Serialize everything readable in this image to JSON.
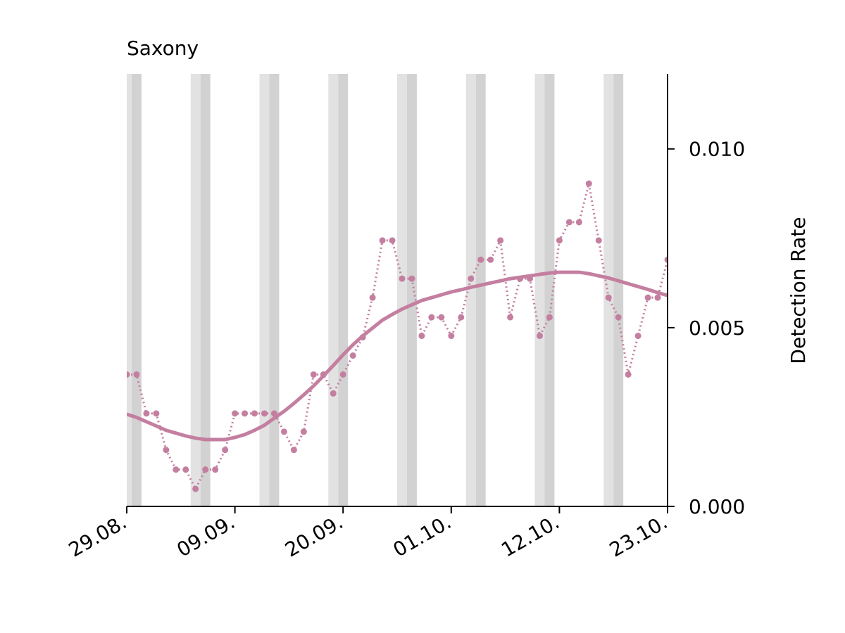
{
  "chart_data": {
    "type": "line",
    "title": "Saxony",
    "y_label": "Detection Rate",
    "categories": [
      "29.08.",
      null,
      null,
      null,
      null,
      null,
      null,
      null,
      null,
      null,
      null,
      "09.09.",
      null,
      null,
      null,
      null,
      null,
      null,
      null,
      null,
      null,
      null,
      "20.09.",
      null,
      null,
      null,
      null,
      null,
      null,
      null,
      null,
      null,
      null,
      "01.10.",
      null,
      null,
      null,
      null,
      null,
      null,
      null,
      null,
      null,
      null,
      "12.10.",
      null,
      null,
      null,
      null,
      null,
      null,
      null,
      null,
      null,
      null,
      "23.10."
    ],
    "series": [
      {
        "color": "#c47fa0",
        "style": "dotted-markers",
        "values": [
          0.00369,
          0.00369,
          0.0026,
          0.0026,
          0.00158,
          0.00103,
          0.00103,
          0.00049,
          0.00103,
          0.00103,
          0.00158,
          0.0026,
          0.0026,
          0.0026,
          0.0026,
          0.0026,
          0.00209,
          0.00158,
          0.00209,
          0.00369,
          0.00369,
          0.00316,
          0.00369,
          0.00422,
          0.00473,
          0.00584,
          0.00744,
          0.00744,
          0.00637,
          0.00637,
          0.00477,
          0.00529,
          0.00529,
          0.00477,
          0.00529,
          0.00637,
          0.0069,
          0.0069,
          0.00744,
          0.00529,
          0.00637,
          0.00637,
          0.00477,
          0.00529,
          0.00744,
          0.00795,
          0.00795,
          0.00903,
          0.00744,
          0.00584,
          0.00529,
          0.00369,
          0.00477,
          0.00584,
          0.00584,
          0.0069
        ]
      },
      {
        "color": "#c47fa0",
        "style": "solid",
        "values": [
          0.00258,
          0.00249,
          0.00237,
          0.00225,
          0.00213,
          0.00205,
          0.00197,
          0.00191,
          0.00187,
          0.00187,
          0.00187,
          0.00193,
          0.00201,
          0.00213,
          0.00227,
          0.00247,
          0.00266,
          0.00288,
          0.00312,
          0.00337,
          0.00365,
          0.00394,
          0.00424,
          0.00452,
          0.00477,
          0.00499,
          0.00521,
          0.00537,
          0.00552,
          0.00564,
          0.00576,
          0.00584,
          0.00592,
          0.006,
          0.00606,
          0.00613,
          0.00619,
          0.00625,
          0.00631,
          0.00637,
          0.00641,
          0.00645,
          0.00649,
          0.00653,
          0.00655,
          0.00655,
          0.00655,
          0.00651,
          0.00645,
          0.00639,
          0.00631,
          0.00623,
          0.00615,
          0.00607,
          0.00598,
          0.0059
        ]
      }
    ],
    "ylim": [
      0,
      0.0121
    ],
    "yticks": [
      {
        "value": 0,
        "label": "0.000"
      },
      {
        "value": 0.005,
        "label": "0.005"
      },
      {
        "value": 0.01,
        "label": "0.010"
      }
    ],
    "y_axis_side": "right",
    "grid": false
  }
}
